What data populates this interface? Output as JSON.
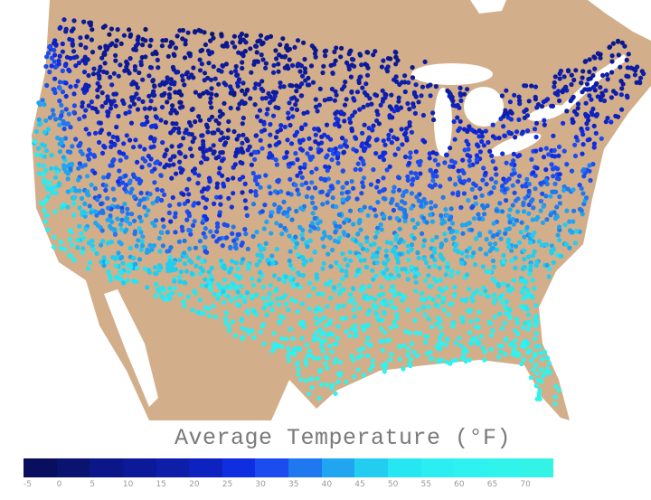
{
  "chart_data": {
    "type": "scatter",
    "title": "Average Temperature (°F)",
    "legend": {
      "placement": "bottom",
      "tick_labels": [
        "-5",
        "0",
        "5",
        "10",
        "15",
        "20",
        "25",
        "30",
        "35",
        "40",
        "45",
        "50",
        "55",
        "60",
        "65",
        "70"
      ],
      "bins": [
        -5,
        0,
        5,
        10,
        15,
        20,
        25,
        30,
        35,
        40,
        45,
        50,
        55,
        60,
        65,
        70
      ],
      "colors": [
        "#0a0e5e",
        "#0b1370",
        "#0b1788",
        "#0c1a9a",
        "#0d1ea8",
        "#0e22c0",
        "#0f2ee0",
        "#1a4cf0",
        "#1f78f0",
        "#20a6f0",
        "#22cdf0",
        "#26e6f2",
        "#2aeef2",
        "#2ef2f0",
        "#30f4ec",
        "#33f2e6"
      ]
    },
    "map_colors": {
      "land": "#d2ae8a",
      "water": "#ffffff"
    }
  }
}
